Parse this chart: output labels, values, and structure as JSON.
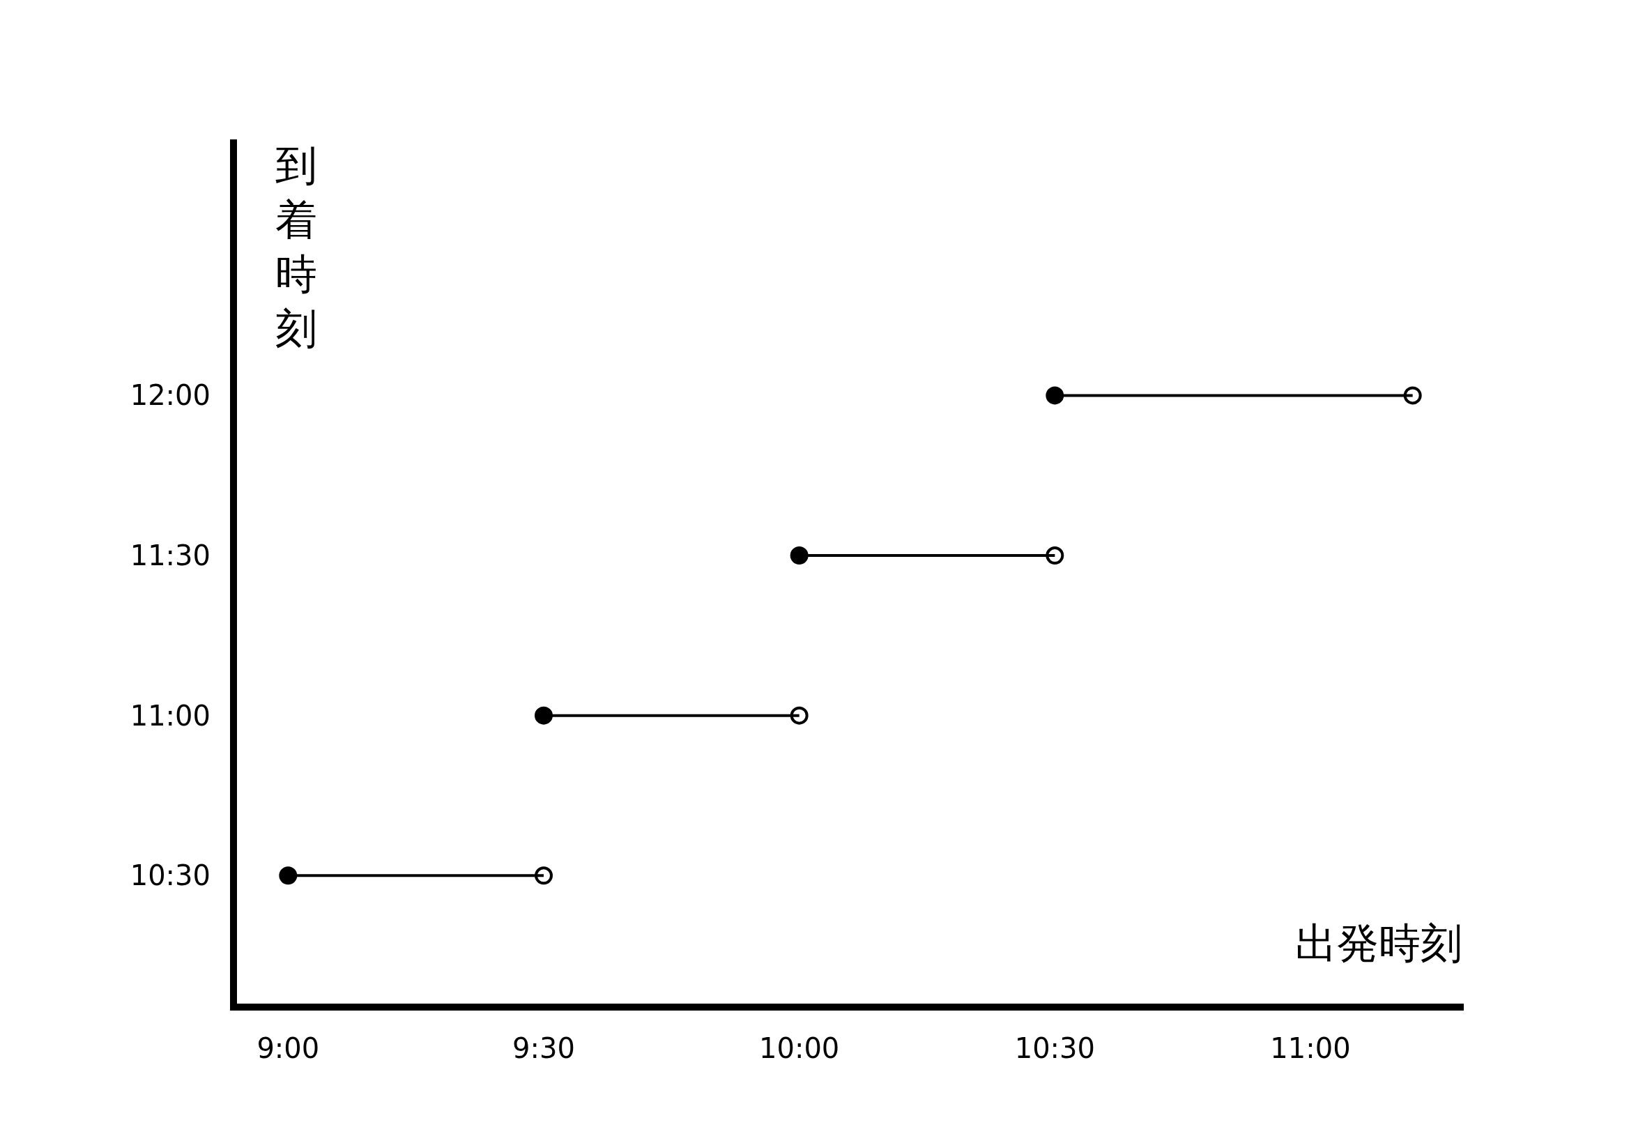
{
  "chart_data": {
    "type": "line",
    "xlabel": "出発時刻",
    "ylabel": "到着時刻",
    "xlim": [
      8.9,
      11.3
    ],
    "ylim": [
      10.1,
      12.8
    ],
    "xticks": [
      {
        "value": 9,
        "label": "9:00"
      },
      {
        "value": 9.5,
        "label": "9:30"
      },
      {
        "value": 10,
        "label": "10:00"
      },
      {
        "value": 10.5,
        "label": "10:30"
      },
      {
        "value": 11,
        "label": "11:00"
      }
    ],
    "yticks": [
      {
        "value": 10.5,
        "label": "10:30"
      },
      {
        "value": 11,
        "label": "11:00"
      },
      {
        "value": 11.5,
        "label": "11:30"
      },
      {
        "value": 12,
        "label": "12:00"
      }
    ],
    "series": [
      {
        "color": "#000000",
        "x": [
          9,
          9.5
        ],
        "values": [
          10.5,
          10.5
        ]
      },
      {
        "color": "#000000",
        "x": [
          9.5,
          10
        ],
        "values": [
          11,
          11
        ]
      },
      {
        "color": "#000000",
        "x": [
          10,
          10.5
        ],
        "values": [
          11.5,
          11.5
        ]
      },
      {
        "color": "#000000",
        "x": [
          10.5,
          11.2
        ],
        "values": [
          12,
          12
        ]
      }
    ],
    "marker": "circle",
    "line_style": "solid",
    "grid": false
  }
}
